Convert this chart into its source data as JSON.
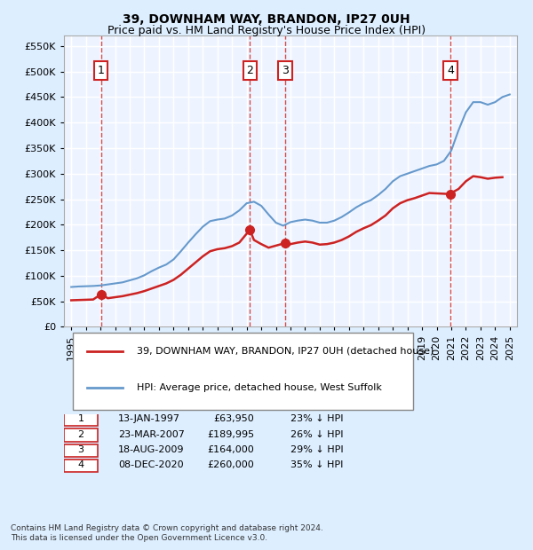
{
  "title": "39, DOWNHAM WAY, BRANDON, IP27 0UH",
  "subtitle": "Price paid vs. HM Land Registry's House Price Index (HPI)",
  "legend_line1": "39, DOWNHAM WAY, BRANDON, IP27 0UH (detached house)",
  "legend_line2": "HPI: Average price, detached house, West Suffolk",
  "footer1": "Contains HM Land Registry data © Crown copyright and database right 2024.",
  "footer2": "This data is licensed under the Open Government Licence v3.0.",
  "transactions": [
    {
      "num": 1,
      "date": "13-JAN-1997",
      "price": 63950,
      "pct": "23%",
      "x": 1997.04
    },
    {
      "num": 2,
      "date": "23-MAR-2007",
      "price": 189995,
      "pct": "26%",
      "x": 2007.22
    },
    {
      "num": 3,
      "date": "18-AUG-2009",
      "price": 164000,
      "pct": "29%",
      "x": 2009.63
    },
    {
      "num": 4,
      "date": "08-DEC-2020",
      "price": 260000,
      "pct": "35%",
      "x": 2020.93
    }
  ],
  "hpi_color": "#6699cc",
  "price_color": "#cc2222",
  "background_color": "#ddeeff",
  "plot_bg": "#eef4ff",
  "grid_color": "#ffffff",
  "ylim": [
    0,
    570000
  ],
  "xlim": [
    1994.5,
    2025.5
  ],
  "hpi_data_x": [
    1995,
    1995.5,
    1996,
    1996.5,
    1997,
    1997.5,
    1998,
    1998.5,
    1999,
    1999.5,
    2000,
    2000.5,
    2001,
    2001.5,
    2002,
    2002.5,
    2003,
    2003.5,
    2004,
    2004.5,
    2005,
    2005.5,
    2006,
    2006.5,
    2007,
    2007.5,
    2008,
    2008.5,
    2009,
    2009.5,
    2010,
    2010.5,
    2011,
    2011.5,
    2012,
    2012.5,
    2013,
    2013.5,
    2014,
    2014.5,
    2015,
    2015.5,
    2016,
    2016.5,
    2017,
    2017.5,
    2018,
    2018.5,
    2019,
    2019.5,
    2020,
    2020.5,
    2021,
    2021.5,
    2022,
    2022.5,
    2023,
    2023.5,
    2024,
    2024.5,
    2025
  ],
  "hpi_data_y": [
    78000,
    79000,
    79500,
    80000,
    81000,
    83000,
    85000,
    87000,
    91000,
    95000,
    101000,
    109000,
    116000,
    122000,
    132000,
    148000,
    165000,
    181000,
    196000,
    207000,
    210000,
    212000,
    218000,
    228000,
    242000,
    245000,
    237000,
    220000,
    204000,
    198000,
    205000,
    208000,
    210000,
    208000,
    204000,
    204000,
    208000,
    215000,
    224000,
    234000,
    242000,
    248000,
    258000,
    270000,
    285000,
    295000,
    300000,
    305000,
    310000,
    315000,
    318000,
    325000,
    345000,
    385000,
    420000,
    440000,
    440000,
    435000,
    440000,
    450000,
    455000
  ],
  "price_data_x": [
    1995,
    1995.5,
    1996,
    1996.5,
    1997.04,
    1997.5,
    1998,
    1998.5,
    1999,
    1999.5,
    2000,
    2000.5,
    2001,
    2001.5,
    2002,
    2002.5,
    2003,
    2003.5,
    2004,
    2004.5,
    2005,
    2005.5,
    2006,
    2006.5,
    2007.22,
    2007.5,
    2008,
    2008.5,
    2009.63,
    2009.8,
    2010,
    2010.5,
    2011,
    2011.5,
    2012,
    2012.5,
    2013,
    2013.5,
    2014,
    2014.5,
    2015,
    2015.5,
    2016,
    2016.5,
    2017,
    2017.5,
    2018,
    2018.5,
    2019,
    2019.5,
    2020.93,
    2021,
    2021.5,
    2022,
    2022.5,
    2023,
    2023.5,
    2024,
    2024.5
  ],
  "price_data_y": [
    52000,
    52500,
    53000,
    53500,
    63950,
    56000,
    58000,
    60000,
    63000,
    66000,
    70000,
    75000,
    80000,
    85000,
    92000,
    102000,
    114000,
    126000,
    138000,
    148000,
    152000,
    154000,
    158000,
    165000,
    189995,
    170000,
    162000,
    155000,
    164000,
    158000,
    162000,
    165000,
    167000,
    165000,
    161000,
    162000,
    165000,
    170000,
    177000,
    186000,
    193000,
    199000,
    208000,
    218000,
    232000,
    242000,
    248000,
    252000,
    257000,
    262000,
    260000,
    262000,
    270000,
    285000,
    295000,
    293000,
    290000,
    292000,
    293000
  ]
}
